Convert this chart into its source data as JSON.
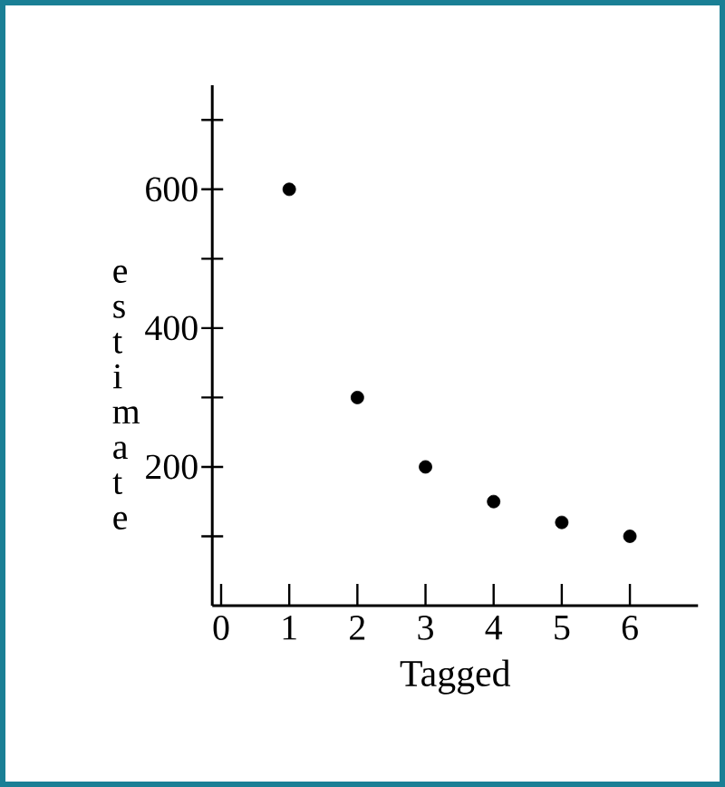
{
  "chart_data": {
    "type": "scatter",
    "xlabel": "Tagged",
    "ylabel": "estimate",
    "x": [
      1,
      2,
      3,
      4,
      5,
      6
    ],
    "values": [
      600,
      300,
      200,
      150,
      120,
      100
    ],
    "color": "#000000",
    "marker": "circle",
    "xlim": [
      -0.13,
      7
    ],
    "ylim": [
      0,
      750
    ],
    "xticks": [
      0,
      1,
      2,
      3,
      4,
      5,
      6
    ],
    "yticks": [
      {
        "value": 100,
        "label": null
      },
      200,
      {
        "value": 300,
        "label": null
      },
      400,
      {
        "value": 500,
        "label": null
      },
      600,
      {
        "value": 700,
        "label": null
      }
    ]
  }
}
